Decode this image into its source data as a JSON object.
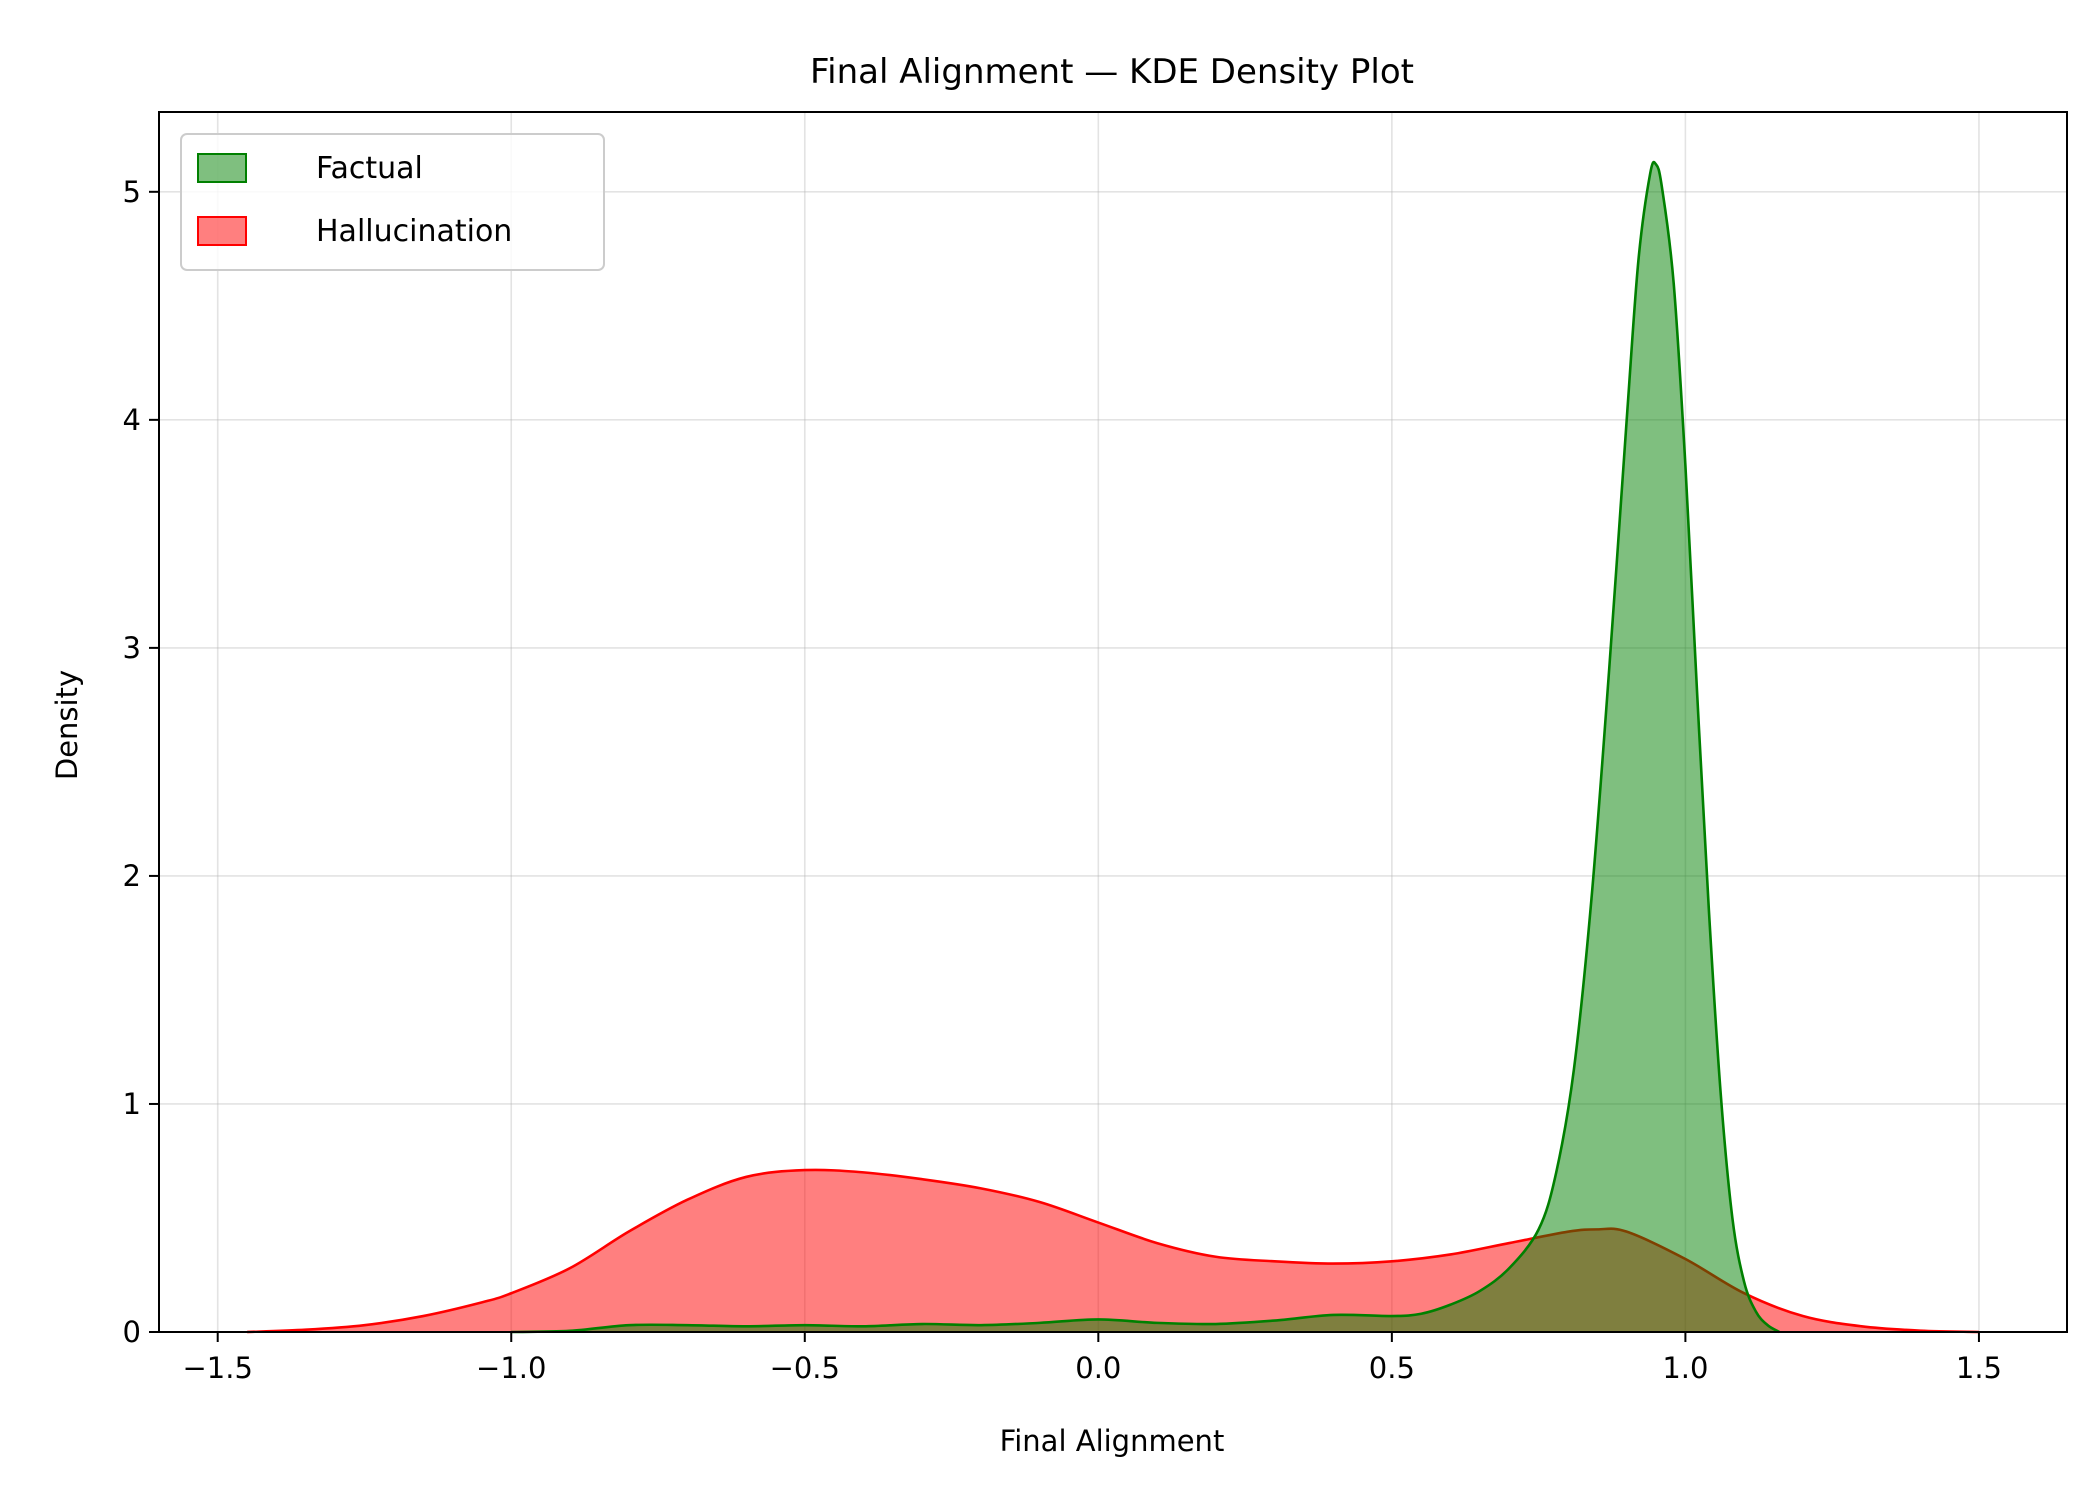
{
  "chart_data": {
    "type": "area",
    "title": "Final Alignment — KDE Density Plot",
    "xlabel": "Final Alignment",
    "ylabel": "Density",
    "xlim": [
      -1.6,
      1.65
    ],
    "ylim": [
      0,
      5.35
    ],
    "xticks": [
      -1.5,
      -1.0,
      -0.5,
      0.0,
      0.5,
      1.0,
      1.5
    ],
    "xtick_labels": [
      "−1.5",
      "−1.0",
      "−0.5",
      "0.0",
      "0.5",
      "1.0",
      "1.5"
    ],
    "yticks": [
      0,
      1,
      2,
      3,
      4,
      5
    ],
    "ytick_labels": [
      "0",
      "1",
      "2",
      "3",
      "4",
      "5"
    ],
    "grid": true,
    "legend_position": "top-left",
    "series": [
      {
        "name": "Factual",
        "line_color": "#008000",
        "fill_color": "#008000",
        "points": [
          [
            -1.0,
            0.0
          ],
          [
            -0.9,
            0.005
          ],
          [
            -0.8,
            0.03
          ],
          [
            -0.7,
            0.03
          ],
          [
            -0.6,
            0.025
          ],
          [
            -0.5,
            0.03
          ],
          [
            -0.4,
            0.025
          ],
          [
            -0.3,
            0.035
          ],
          [
            -0.2,
            0.03
          ],
          [
            -0.1,
            0.04
          ],
          [
            0.0,
            0.055
          ],
          [
            0.1,
            0.04
          ],
          [
            0.2,
            0.035
          ],
          [
            0.3,
            0.05
          ],
          [
            0.4,
            0.075
          ],
          [
            0.5,
            0.07
          ],
          [
            0.55,
            0.08
          ],
          [
            0.6,
            0.12
          ],
          [
            0.65,
            0.18
          ],
          [
            0.7,
            0.28
          ],
          [
            0.75,
            0.45
          ],
          [
            0.78,
            0.7
          ],
          [
            0.81,
            1.15
          ],
          [
            0.84,
            1.9
          ],
          [
            0.87,
            2.9
          ],
          [
            0.9,
            4.0
          ],
          [
            0.92,
            4.7
          ],
          [
            0.94,
            5.08
          ],
          [
            0.95,
            5.12
          ],
          [
            0.96,
            5.02
          ],
          [
            0.98,
            4.6
          ],
          [
            1.0,
            3.8
          ],
          [
            1.02,
            2.8
          ],
          [
            1.04,
            1.85
          ],
          [
            1.06,
            1.05
          ],
          [
            1.08,
            0.5
          ],
          [
            1.1,
            0.22
          ],
          [
            1.12,
            0.09
          ],
          [
            1.14,
            0.03
          ],
          [
            1.16,
            0.0
          ]
        ]
      },
      {
        "name": "Hallucination",
        "line_color": "#ff0000",
        "fill_color": "#ff0000",
        "points": [
          [
            -1.45,
            0.0
          ],
          [
            -1.35,
            0.01
          ],
          [
            -1.25,
            0.03
          ],
          [
            -1.15,
            0.07
          ],
          [
            -1.05,
            0.13
          ],
          [
            -1.0,
            0.17
          ],
          [
            -0.9,
            0.28
          ],
          [
            -0.8,
            0.44
          ],
          [
            -0.7,
            0.58
          ],
          [
            -0.6,
            0.68
          ],
          [
            -0.5,
            0.71
          ],
          [
            -0.4,
            0.7
          ],
          [
            -0.3,
            0.67
          ],
          [
            -0.2,
            0.63
          ],
          [
            -0.1,
            0.57
          ],
          [
            0.0,
            0.48
          ],
          [
            0.1,
            0.39
          ],
          [
            0.2,
            0.33
          ],
          [
            0.3,
            0.31
          ],
          [
            0.4,
            0.3
          ],
          [
            0.5,
            0.31
          ],
          [
            0.6,
            0.34
          ],
          [
            0.7,
            0.39
          ],
          [
            0.8,
            0.44
          ],
          [
            0.85,
            0.45
          ],
          [
            0.9,
            0.44
          ],
          [
            1.0,
            0.32
          ],
          [
            1.1,
            0.17
          ],
          [
            1.2,
            0.07
          ],
          [
            1.3,
            0.025
          ],
          [
            1.4,
            0.006
          ],
          [
            1.5,
            0.0
          ]
        ]
      }
    ]
  }
}
